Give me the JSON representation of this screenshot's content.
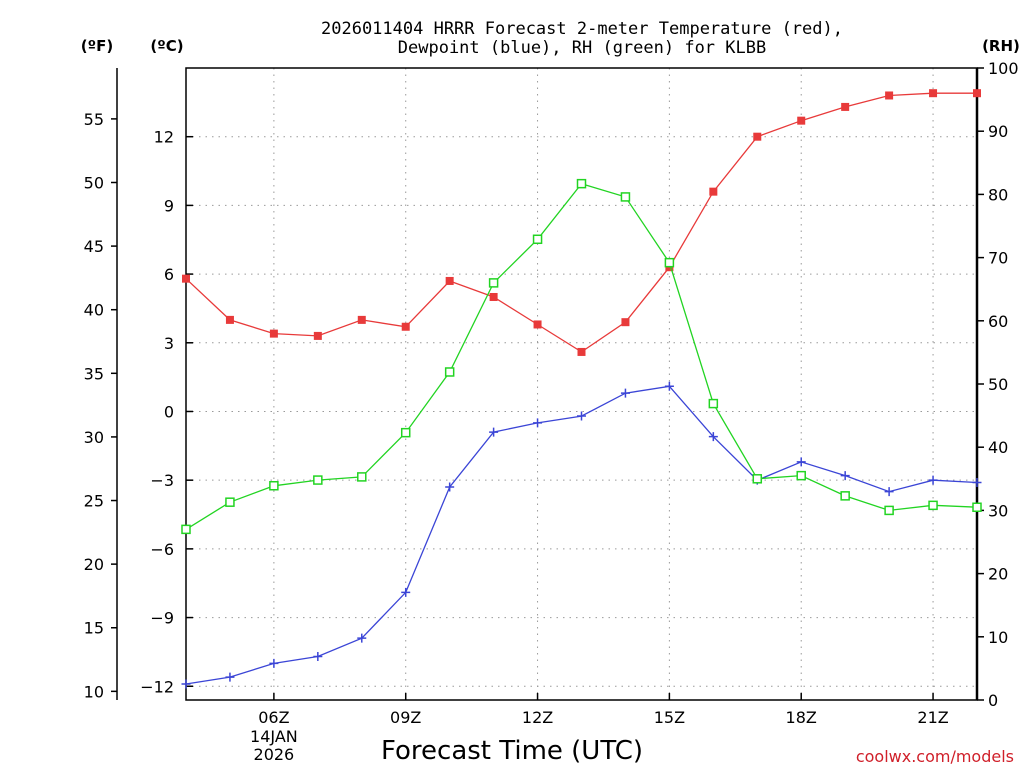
{
  "chart_data": {
    "type": "line",
    "title_line1": "2026011404 HRRR Forecast 2-meter Temperature (red),",
    "title_line2": "Dewpoint (blue), RH (green) for KLBB",
    "xlabel": "Forecast Time (UTC)",
    "credit": "coolwx.com/models",
    "units": {
      "fahrenheit": "(ºF)",
      "celsius": "(ºC)",
      "rh": "(RH)"
    },
    "x": [
      4,
      5,
      6,
      7,
      8,
      9,
      10,
      11,
      12,
      13,
      14,
      15,
      16,
      17,
      18,
      19,
      20,
      21,
      22
    ],
    "xlim": [
      4,
      22
    ],
    "x_ticks": [
      {
        "hour": 6,
        "label": "06Z",
        "sub1": "14JAN",
        "sub2": "2026"
      },
      {
        "hour": 9,
        "label": "09Z"
      },
      {
        "hour": 12,
        "label": "12Z"
      },
      {
        "hour": 15,
        "label": "15Z"
      },
      {
        "hour": 18,
        "label": "18Z"
      },
      {
        "hour": 21,
        "label": "21Z"
      }
    ],
    "ylim_celsius": [
      -12.6,
      15.0
    ],
    "y_ticks_celsius": [
      12,
      9,
      6,
      3,
      0,
      -3,
      -6,
      -9,
      -12
    ],
    "y_ticks_fahrenheit": [
      55,
      50,
      45,
      40,
      35,
      30,
      25,
      20,
      15,
      10
    ],
    "ylim_rh": [
      0,
      100
    ],
    "y_ticks_rh": [
      100,
      90,
      80,
      70,
      60,
      50,
      40,
      30,
      20,
      10,
      0
    ],
    "colors": {
      "temperature": "#e83a3a",
      "dewpoint": "#3b45d6",
      "rh": "#22d422"
    },
    "series": [
      {
        "name": "Temperature",
        "unit": "C",
        "marker": "square-filled",
        "values": [
          5.8,
          4.0,
          3.4,
          3.3,
          4.0,
          3.7,
          5.7,
          5.0,
          3.8,
          2.6,
          3.9,
          6.3,
          9.6,
          12.0,
          12.7,
          13.3,
          13.8,
          13.9,
          13.9
        ]
      },
      {
        "name": "Dewpoint",
        "unit": "C",
        "marker": "plus",
        "values": [
          -11.9,
          -11.6,
          -11.0,
          -10.7,
          -9.9,
          -7.9,
          -3.3,
          -0.9,
          -0.5,
          -0.2,
          0.8,
          1.1,
          -1.1,
          -3.0,
          -2.2,
          -2.8,
          -3.5,
          -3.0,
          -3.1
        ]
      },
      {
        "name": "RH",
        "unit": "%",
        "marker": "square-open",
        "values": [
          27.0,
          31.3,
          33.9,
          34.8,
          35.3,
          42.3,
          51.9,
          66.0,
          72.9,
          81.7,
          79.6,
          69.2,
          46.9,
          35.0,
          35.5,
          32.3,
          30.0,
          30.8,
          30.5
        ]
      }
    ]
  }
}
